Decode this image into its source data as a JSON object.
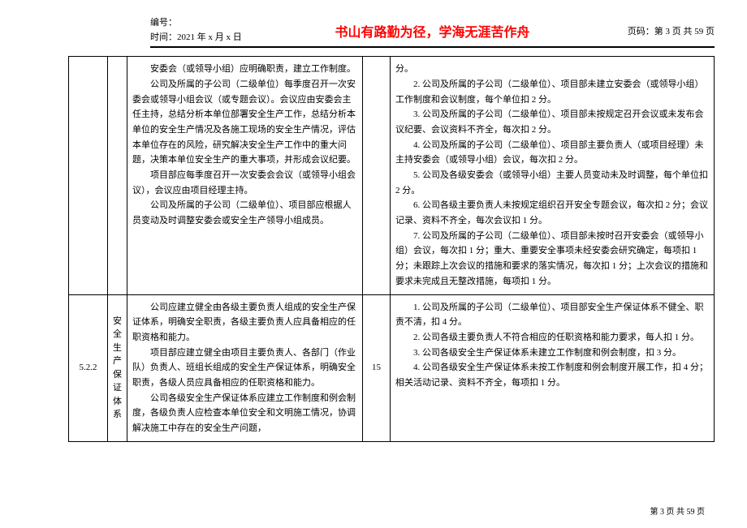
{
  "header": {
    "doc_no_label": "编号：",
    "date_label": "时间：2021 年 x 月 x 日",
    "motto": "书山有路勤为径，学海无涯苦作舟",
    "page_label": "页码：第 3 页 共 59 页"
  },
  "row1": {
    "desc_p1": "安委会（或领导小组）应明确职责，建立工作制度。",
    "desc_p2": "公司及所属的子公司（二级单位）每季度召开一次安委会或领导小组会议（或专题会议）。会议应由安委会主任主持，总结分析本单位部署安全生产工作，总结分析本单位的安全生产情况及各施工现场的安全生产情况，评估本单位存在的风险，研究解决安全生产工作中的重大问题，决策本单位安全生产的重大事项，并形成会议纪要。",
    "desc_p3": "项目部应每季度召开一次安委会会议（或领导小组会议），会议应由项目经理主持。",
    "desc_p4": "公司及所属的子公司（二级单位）、项目部应根据人员变动及时调整安委会或安全生产领导小组成员。",
    "rule_p0": "分。",
    "rule_p2": "2. 公司及所属的子公司（二级单位）、项目部未建立安委会（或领导小组）工作制度和会议制度，每个单位扣 2 分。",
    "rule_p3": "3. 公司及所属的子公司（二级单位）、项目部未按规定召开会议或未发布会议纪要、会议资料不齐全，每次扣 2 分。",
    "rule_p4": "4. 公司及所属的子公司（二级单位）、项目部主要负责人（或项目经理）未主持安委会（或领导小组）会议，每次扣 2 分。",
    "rule_p5": "5. 公司及各级安委会（或领导小组）主要人员变动未及时调整，每个单位扣 2 分。",
    "rule_p6": "6. 公司各级主要负责人未按规定组织召开安全专题会议，每次扣 2 分；会议记录、资料不齐全，每次会议扣 1 分。",
    "rule_p7": "7. 公司及所属的子公司（二级单位）、项目部未按时召开安委会（或领导小组）会议，每次扣 1 分；重大、重要安全事项未经安委会研究确定，每项扣 1 分；未跟踪上次会议的措施和要求的落实情况，每次扣 1 分；上次会议的措施和要求未完成且无整改措施，每项扣 1 分。"
  },
  "row2": {
    "id": "5.2.2",
    "cat": "安全生产保证体系",
    "desc_p1": "公司应建立健全由各级主要负责人组成的安全生产保证体系，明确安全职责，各级主要负责人应具备相应的任职资格和能力。",
    "desc_p2": "项目部应建立健全由项目主要负责人、各部门（作业队）负责人、班组长组成的安全生产保证体系，明确安全职责，各级人员应具备相应的任职资格和能力。",
    "desc_p3": "公司各级安全生产保证体系应建立工作制度和例会制度，各级负责人应检查本单位安全和文明施工情况，协调解决施工中存在的安全生产问题，",
    "score": "15",
    "rule_p1": "1. 公司及所属的子公司（二级单位）、项目部安全生产保证体系不健全、职责不清，扣 4 分。",
    "rule_p2": "2. 公司各级主要负责人不符合相应的任职资格和能力要求，每人扣 1 分。",
    "rule_p3": "3. 公司各级安全生产保证体系未建立工作制度和例会制度，扣 3 分。",
    "rule_p4": "4. 公司各级安全生产保证体系未按工作制度和例会制度开展工作，扣 4 分；相关活动记录、资料不齐全，每项扣 1 分。"
  },
  "footer": "第 3 页 共 59 页"
}
